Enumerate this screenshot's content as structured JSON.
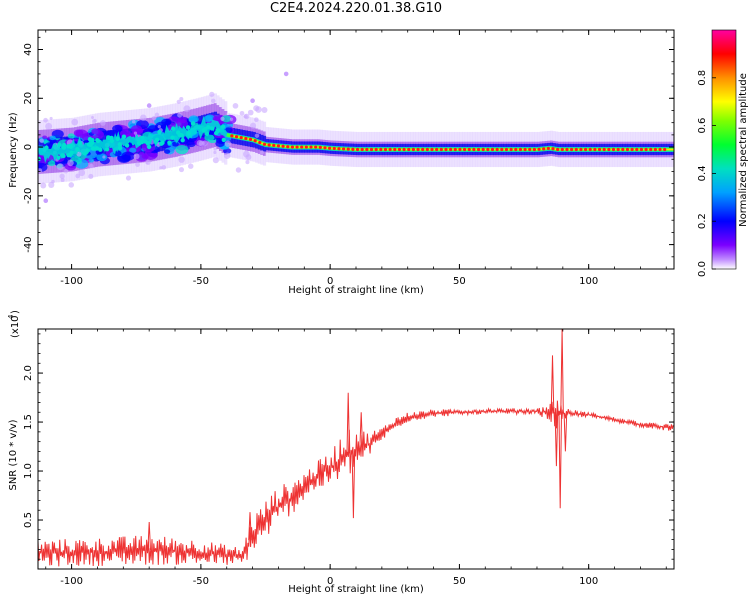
{
  "figure_title": "C2E4.2024.220.01.38.G10",
  "chart_data": [
    {
      "type": "heatmap",
      "title": "C2E4.2024.220.01.38.G10",
      "xlabel": "Height of straight line (km)",
      "ylabel": "Frequency (Hz)",
      "xlim": [
        -113,
        133
      ],
      "ylim": [
        -50,
        48
      ],
      "x_ticks": [
        -100,
        -50,
        0,
        50,
        100
      ],
      "x_tick_labels": [
        "-100",
        "-50",
        "0",
        "50",
        "100"
      ],
      "y_ticks": [
        40,
        20,
        0,
        -20,
        -40
      ],
      "y_tick_labels": [
        "40",
        "20",
        "0",
        "-20",
        "-40"
      ],
      "colorbar": {
        "label": "Normalized spectral amplitude",
        "range": [
          0,
          1
        ],
        "ticks": [
          0.0,
          0.2,
          0.4,
          0.6,
          0.8
        ],
        "tick_labels": [
          "0.0",
          "0.2",
          "0.4",
          "0.6",
          "0.8"
        ],
        "colormap": [
          "#ffffff",
          "#7b00ff",
          "#0000ff",
          "#00c8ff",
          "#00ff40",
          "#c8ff00",
          "#ffff00",
          "#ff8000",
          "#ff0000",
          "#ff00a0"
        ]
      },
      "ridge": {
        "x": [
          -113,
          -100,
          -90,
          -80,
          -70,
          -60,
          -52,
          -45,
          -40,
          -35,
          -30,
          -25,
          -20,
          -15,
          -10,
          -5,
          0,
          10,
          30,
          60,
          80,
          85,
          88,
          100,
          133
        ],
        "y": [
          -2,
          -1,
          1,
          2,
          3,
          5,
          7,
          9,
          5,
          4,
          3,
          1,
          0.5,
          0,
          0,
          0,
          -0.5,
          -1,
          -1,
          -1,
          -1,
          -0.5,
          -1,
          -1,
          -1
        ]
      },
      "isolated_points": [
        {
          "x": -17,
          "y": 30
        },
        {
          "x": -30,
          "y": 19
        },
        {
          "x": -70,
          "y": 17
        },
        {
          "x": -110,
          "y": -22
        }
      ]
    },
    {
      "type": "line",
      "xlabel": "Height of straight line (km)",
      "ylabel": "SNR (10 * v/v)",
      "y_multiplier_label": "(x10",
      "y_multiplier_exponent": "4",
      "xlim": [
        -113,
        133
      ],
      "ylim": [
        0,
        2.45
      ],
      "x_ticks": [
        -100,
        -50,
        0,
        50,
        100
      ],
      "x_tick_labels": [
        "-100",
        "-50",
        "0",
        "50",
        "100"
      ],
      "y_ticks": [
        0.5,
        1.0,
        1.5,
        2.0
      ],
      "y_tick_labels": [
        "0.5",
        "1.0",
        "1.5",
        "2.0"
      ],
      "line_color": "#ee3333",
      "series": [
        {
          "envelope": {
            "x": [
              -113,
              -90,
              -70,
              -50,
              -34,
              -30,
              -25,
              -20,
              -15,
              -10,
              -5,
              0,
              5,
              10,
              15,
              20,
              25,
              30,
              40,
              50,
              60,
              70,
              80,
              85,
              88,
              90,
              95,
              100,
              110,
              120,
              133
            ],
            "lo": [
              0.02,
              0.03,
              0.04,
              0.04,
              0.03,
              0.15,
              0.3,
              0.45,
              0.55,
              0.7,
              0.8,
              0.85,
              0.9,
              1.0,
              1.15,
              1.3,
              1.42,
              1.5,
              1.55,
              1.57,
              1.58,
              1.58,
              1.58,
              1.5,
              1.4,
              1.52,
              1.55,
              1.55,
              1.5,
              1.45,
              1.4
            ],
            "hi": [
              0.3,
              0.32,
              0.35,
              0.3,
              0.22,
              0.55,
              0.7,
              0.85,
              0.9,
              1.0,
              1.1,
              1.2,
              1.4,
              1.45,
              1.4,
              1.45,
              1.55,
              1.6,
              1.63,
              1.63,
              1.64,
              1.64,
              1.64,
              1.7,
              1.8,
              1.65,
              1.62,
              1.6,
              1.55,
              1.5,
              1.48
            ]
          },
          "spikes": [
            {
              "x": -70,
              "y": 0.48
            },
            {
              "x": -31,
              "y": 0.58
            },
            {
              "x": 7,
              "y": 1.8
            },
            {
              "x": 9,
              "y": 0.52
            },
            {
              "x": 12,
              "y": 1.6
            },
            {
              "x": 86,
              "y": 2.18
            },
            {
              "x": 87.5,
              "y": 1.05
            },
            {
              "x": 89,
              "y": 0.62
            },
            {
              "x": 89.7,
              "y": 2.45
            },
            {
              "x": 91,
              "y": 1.2
            }
          ]
        }
      ]
    }
  ]
}
